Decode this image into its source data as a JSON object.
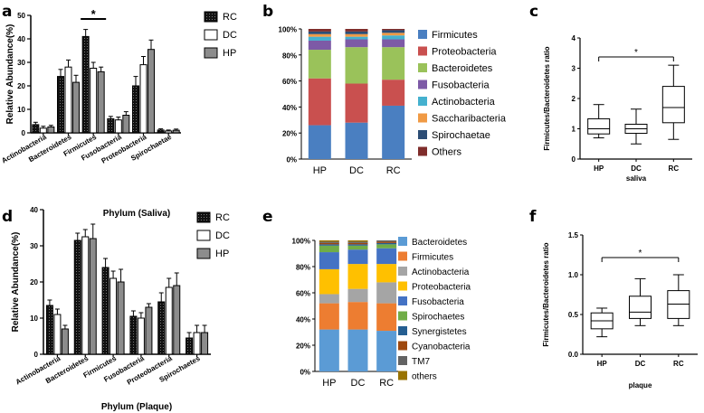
{
  "colors": {
    "rc": "#1a1a1a",
    "dc": "#ffffff",
    "hp": "#8c8c8c",
    "b_Firmicutes": "#4a7fc1",
    "b_Proteobacteria": "#c9504f",
    "b_Bacteroidetes": "#9ac25a",
    "b_Fusobacteria": "#7d5aa6",
    "b_Actinobacteria": "#45b1cf",
    "b_Saccharibacteria": "#f09a44",
    "b_Spirochaetae": "#2c4d75",
    "b_Others": "#7f2d2b",
    "e_Bacteroidetes": "#5b9bd5",
    "e_Firmicutes": "#ed7d31",
    "e_Actinobacteria": "#a5a5a5",
    "e_Proteobacteria": "#ffc000",
    "e_Fusobacteria": "#4472c4",
    "e_Spirochaetes": "#70ad47",
    "e_Synergistetes": "#255e91",
    "e_Cyanobacteria": "#9e480e",
    "e_TM7": "#636363",
    "e_others": "#997300"
  },
  "chart_data": [
    {
      "panel": "a",
      "type": "bar",
      "title": "",
      "xlabel": "",
      "ylabel": "Relative Abundance(%)",
      "ylim": [
        0,
        50
      ],
      "yticks": [
        "0",
        "10",
        "20",
        "30",
        "40",
        "50"
      ],
      "categories": [
        "Actinobacteria",
        "Bacteroidetes",
        "Firmicutes",
        "Fusobacteria",
        "Proteobacteria",
        "Spirochaetae"
      ],
      "series": [
        {
          "name": "RC",
          "values": [
            3.5,
            24,
            41,
            6,
            20,
            1.2
          ],
          "errors": [
            1,
            3,
            3,
            1,
            4,
            0.5
          ]
        },
        {
          "name": "DC",
          "values": [
            2,
            28,
            27.5,
            5.5,
            29,
            0.8
          ],
          "errors": [
            0.8,
            3,
            2.5,
            1.2,
            3.5,
            0.4
          ]
        },
        {
          "name": "HP",
          "values": [
            2.5,
            21.5,
            26,
            7.5,
            35.5,
            1.1
          ],
          "errors": [
            0.7,
            3,
            2,
            1.5,
            4,
            0.5
          ]
        }
      ],
      "legend": "top-right",
      "annotation": "*"
    },
    {
      "panel": "b",
      "type": "bar",
      "title": "",
      "xlabel": "",
      "ylabel": "",
      "ylim": [
        0,
        100
      ],
      "yticks": [
        "0%",
        "20%",
        "40%",
        "60%",
        "80%",
        "100%"
      ],
      "categories": [
        "HP",
        "DC",
        "RC"
      ],
      "stacked": true,
      "series": [
        {
          "name": "Firmicutes",
          "values": [
            26,
            28,
            41
          ]
        },
        {
          "name": "Proteobacteria",
          "values": [
            36,
            30,
            20
          ]
        },
        {
          "name": "Bacteroidetes",
          "values": [
            22,
            28,
            25
          ]
        },
        {
          "name": "Fusobacteria",
          "values": [
            7,
            6,
            6
          ]
        },
        {
          "name": "Actinobacteria",
          "values": [
            3,
            2,
            3
          ]
        },
        {
          "name": "Saccharibacteria",
          "values": [
            2,
            2,
            2
          ]
        },
        {
          "name": "Spirochaetae",
          "values": [
            2,
            2,
            2
          ]
        },
        {
          "name": "Others",
          "values": [
            2,
            2,
            1
          ]
        }
      ],
      "legend": "right"
    },
    {
      "panel": "c",
      "type": "box",
      "title": "",
      "xlabel": "saliva",
      "ylabel": "Firmicutes/Bacteroidetes ratio",
      "ylim": [
        0,
        4
      ],
      "yticks": [
        "0",
        "1",
        "2",
        "3",
        "4"
      ],
      "categories": [
        "HP",
        "DC",
        "RC"
      ],
      "boxes": [
        {
          "min": 0.7,
          "q1": 0.83,
          "median": 1.0,
          "q3": 1.33,
          "max": 1.8
        },
        {
          "min": 0.5,
          "q1": 0.85,
          "median": 1.0,
          "q3": 1.15,
          "max": 1.65
        },
        {
          "min": 0.65,
          "q1": 1.2,
          "median": 1.7,
          "q3": 2.4,
          "max": 3.1
        }
      ],
      "annotation": "*"
    },
    {
      "panel": "d",
      "type": "bar",
      "title": "Phylum (Saliva)",
      "xlabel": "Phylum (Plaque)",
      "ylabel": "Relative Abundance(%)",
      "ylim": [
        0,
        40
      ],
      "yticks": [
        "0",
        "10",
        "20",
        "30",
        "40"
      ],
      "categories": [
        "Actinobacteria",
        "Bacteroidetes",
        "Firmicutes",
        "Fusobacteria",
        "Proteobacteria",
        "Spirochaetes"
      ],
      "series": [
        {
          "name": "RC",
          "values": [
            13.5,
            31.5,
            24,
            10.5,
            14.5,
            4.5
          ],
          "errors": [
            1.5,
            2,
            2.5,
            1.5,
            2.5,
            1.5
          ]
        },
        {
          "name": "DC",
          "values": [
            11,
            32.5,
            21,
            10,
            18.5,
            6
          ],
          "errors": [
            1.5,
            2,
            2,
            1.5,
            2.5,
            2
          ]
        },
        {
          "name": "HP",
          "values": [
            7,
            32,
            20,
            13,
            19,
            6
          ],
          "errors": [
            1,
            4,
            3.5,
            1,
            3.5,
            2
          ]
        }
      ],
      "legend": "top-right"
    },
    {
      "panel": "e",
      "type": "bar",
      "title": "",
      "xlabel": "",
      "ylabel": "",
      "ylim": [
        0,
        100
      ],
      "yticks": [
        "0%",
        "20%",
        "40%",
        "60%",
        "80%",
        "100%"
      ],
      "categories": [
        "HP",
        "DC",
        "RC"
      ],
      "stacked": true,
      "series": [
        {
          "name": "Bacteroidetes",
          "values": [
            32,
            32,
            31
          ]
        },
        {
          "name": "Firmicutes",
          "values": [
            20,
            21,
            21
          ]
        },
        {
          "name": "Actinobacteria",
          "values": [
            7,
            10,
            16
          ]
        },
        {
          "name": "Proteobacteria",
          "values": [
            19,
            19,
            14
          ]
        },
        {
          "name": "Fusobacteria",
          "values": [
            13,
            11,
            12
          ]
        },
        {
          "name": "Spirochaetes",
          "values": [
            5,
            3,
            3
          ]
        },
        {
          "name": "Synergistetes",
          "values": [
            1,
            1,
            1
          ]
        },
        {
          "name": "Cyanobacteria",
          "values": [
            1,
            1,
            1
          ]
        },
        {
          "name": "TM7",
          "values": [
            1,
            1,
            1
          ]
        },
        {
          "name": "others",
          "values": [
            1,
            1,
            0
          ]
        }
      ],
      "legend": "right"
    },
    {
      "panel": "f",
      "type": "box",
      "title": "",
      "xlabel": "plaque",
      "ylabel": "Firmicutes/Bacteroidetes ratio",
      "ylim": [
        0,
        1.5
      ],
      "yticks": [
        "0.0",
        "0.5",
        "1.0",
        "1.5"
      ],
      "categories": [
        "HP",
        "DC",
        "RC"
      ],
      "boxes": [
        {
          "min": 0.22,
          "q1": 0.32,
          "median": 0.42,
          "q3": 0.52,
          "max": 0.58
        },
        {
          "min": 0.36,
          "q1": 0.45,
          "median": 0.53,
          "q3": 0.73,
          "max": 0.95
        },
        {
          "min": 0.36,
          "q1": 0.45,
          "median": 0.63,
          "q3": 0.8,
          "max": 1.0
        }
      ],
      "annotation": "*"
    }
  ]
}
